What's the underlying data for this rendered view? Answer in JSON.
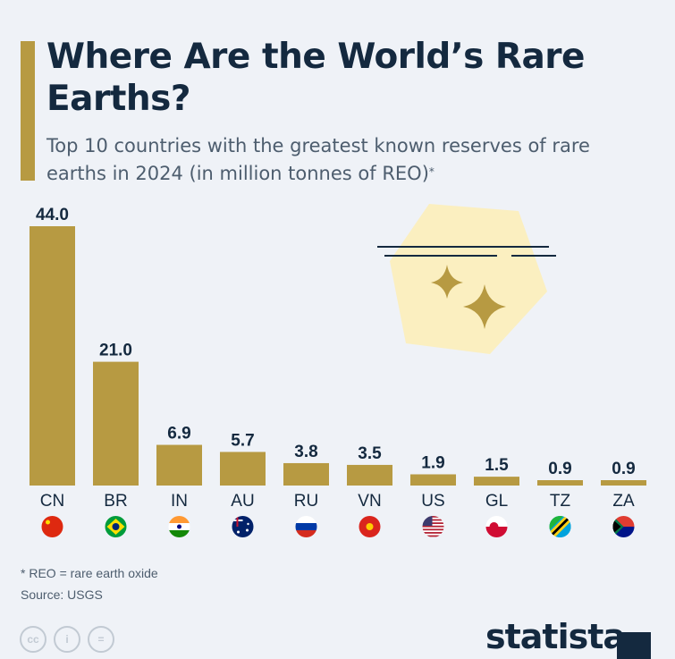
{
  "title": "Where Are the World’s Rare Earths?",
  "subtitle": "Top 10 countries with the greatest known reserves of rare earths in 2024 (in million tonnes of REO)",
  "subtitle_mark": "*",
  "footnote": "* REO = rare earth oxide",
  "source": "Source: USGS",
  "logo": "statista",
  "colors": {
    "bar": "#b79a42",
    "text": "#14293f",
    "background": "#eff2f7",
    "illustration": "#fbefc0"
  },
  "license_icons": [
    "cc-icon",
    "attribution-icon",
    "no-derivatives-icon"
  ],
  "chart_data": {
    "type": "bar",
    "categories": [
      "CN",
      "BR",
      "IN",
      "AU",
      "RU",
      "VN",
      "US",
      "GL",
      "TZ",
      "ZA"
    ],
    "values": [
      44.0,
      21.0,
      6.9,
      5.7,
      3.8,
      3.5,
      1.9,
      1.5,
      0.9,
      0.9
    ],
    "value_labels": [
      "44.0",
      "21.0",
      "6.9",
      "5.7",
      "3.8",
      "3.5",
      "1.9",
      "1.5",
      "0.9",
      "0.9"
    ],
    "flags": [
      "china-flag-icon",
      "brazil-flag-icon",
      "india-flag-icon",
      "australia-flag-icon",
      "russia-flag-icon",
      "vietnam-flag-icon",
      "usa-flag-icon",
      "greenland-flag-icon",
      "tanzania-flag-icon",
      "south-africa-flag-icon"
    ],
    "ylim": [
      0,
      44
    ],
    "grid": false,
    "legend": "none"
  }
}
